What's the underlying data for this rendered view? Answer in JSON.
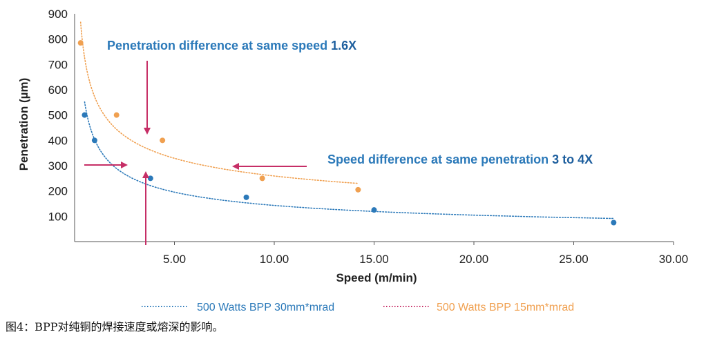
{
  "chart_data": {
    "type": "scatter",
    "xlabel": "Speed (m/min)",
    "ylabel": "Penetration (µm)",
    "xlim": [
      0,
      30
    ],
    "ylim": [
      0,
      900
    ],
    "x_ticks": [
      "5.00",
      "10.00",
      "15.00",
      "20.00",
      "25.00",
      "30.00"
    ],
    "x_tick_values": [
      5,
      10,
      15,
      20,
      25,
      30
    ],
    "y_ticks": [
      "100",
      "200",
      "300",
      "400",
      "500",
      "600",
      "700",
      "800",
      "900"
    ],
    "y_tick_values": [
      100,
      200,
      300,
      400,
      500,
      600,
      700,
      800,
      900
    ],
    "grid": false,
    "legend_position": "bottom",
    "series": [
      {
        "name": "500 Watts BPP 30mm*mrad",
        "color": "#2b79b9",
        "trend": "dotted",
        "points": [
          {
            "x": 0.5,
            "y": 500
          },
          {
            "x": 1.0,
            "y": 400
          },
          {
            "x": 3.8,
            "y": 250
          },
          {
            "x": 8.6,
            "y": 175
          },
          {
            "x": 15.0,
            "y": 125
          },
          {
            "x": 27.0,
            "y": 75
          }
        ]
      },
      {
        "name": "500 Watts BPP 15mm*mrad",
        "color": "#f0a050",
        "trend": "dotted",
        "points": [
          {
            "x": 0.3,
            "y": 785
          },
          {
            "x": 2.1,
            "y": 500
          },
          {
            "x": 4.4,
            "y": 400
          },
          {
            "x": 9.4,
            "y": 250
          },
          {
            "x": 14.2,
            "y": 205
          }
        ]
      }
    ],
    "annotations": [
      {
        "prefix": "Penetration difference at same speed ",
        "emphasis": "1.6X"
      },
      {
        "prefix": "Speed difference at same penetration ",
        "emphasis": "3 to 4X"
      }
    ],
    "arrow_color": "#c62e66"
  },
  "caption": "图4：BPP对纯铜的焊接速度或熔深的影响。"
}
